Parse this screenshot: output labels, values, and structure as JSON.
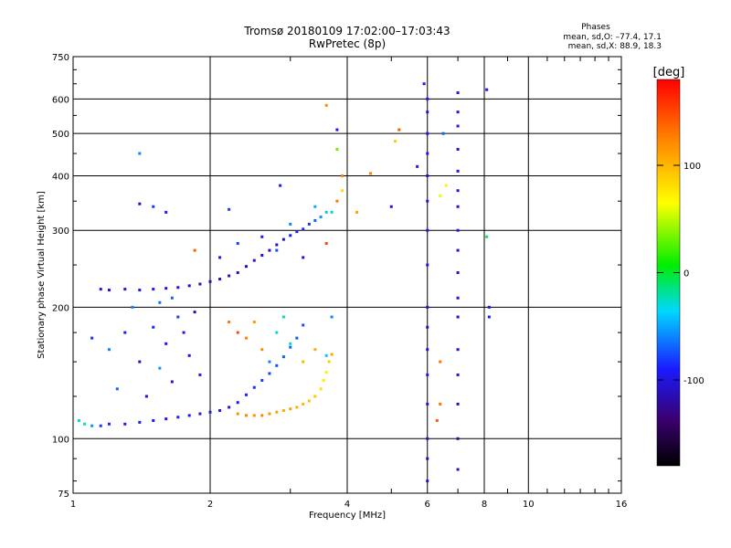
{
  "chart_data": {
    "type": "scatter",
    "title": "Tromsø 20180109 17:02:00–17:03:43",
    "subtitle": "RwPretec (8p)",
    "stats": {
      "heading": "Phases",
      "line1": "mean, sd,O: –77.4, 17.1",
      "line2": "mean, sd,X:  88.9, 18.3"
    },
    "xlabel": "Frequency [MHz]",
    "ylabel": "Stationary phase Virtual Height [km]",
    "x_scale": "log",
    "y_scale": "log",
    "xlim": [
      1,
      16
    ],
    "ylim": [
      75,
      750
    ],
    "grid": true,
    "x_ticks": [
      {
        "value": 1,
        "label": "1"
      },
      {
        "value": 2,
        "label": "2"
      },
      {
        "value": 4,
        "label": "4"
      },
      {
        "value": 6,
        "label": "6"
      },
      {
        "value": 8,
        "label": "8"
      },
      {
        "value": 10,
        "label": "10"
      },
      {
        "value": 16,
        "label": "16"
      }
    ],
    "x_minor_ticks": [
      3,
      5,
      7,
      9,
      11,
      12,
      13,
      14,
      15
    ],
    "y_ticks": [
      {
        "value": 75,
        "label": "75"
      },
      {
        "value": 100,
        "label": "100"
      },
      {
        "value": 200,
        "label": "200"
      },
      {
        "value": 300,
        "label": "300"
      },
      {
        "value": 400,
        "label": "400"
      },
      {
        "value": 500,
        "label": "500"
      },
      {
        "value": 600,
        "label": "600"
      },
      {
        "value": 750,
        "label": "750"
      }
    ],
    "colorbar": {
      "label": "[deg]",
      "min": -180,
      "max": 180,
      "ticks": [
        {
          "value": 100,
          "label": "100"
        },
        {
          "value": 0,
          "label": "0"
        },
        {
          "value": -100,
          "label": "-100"
        }
      ]
    },
    "points": [
      [
        1.03,
        110,
        -30
      ],
      [
        1.06,
        108,
        -25
      ],
      [
        1.1,
        107,
        -55
      ],
      [
        1.15,
        107,
        -80
      ],
      [
        1.2,
        108,
        -85
      ],
      [
        1.3,
        108,
        -90
      ],
      [
        1.4,
        109,
        -90
      ],
      [
        1.5,
        110,
        -90
      ],
      [
        1.6,
        111,
        -92
      ],
      [
        1.7,
        112,
        -95
      ],
      [
        1.8,
        113,
        -95
      ],
      [
        1.9,
        114,
        -95
      ],
      [
        2.0,
        115,
        -95
      ],
      [
        2.1,
        116,
        -95
      ],
      [
        2.2,
        118,
        -95
      ],
      [
        2.3,
        121,
        -90
      ],
      [
        2.4,
        126,
        -88
      ],
      [
        2.5,
        131,
        -85
      ],
      [
        2.6,
        136,
        -80
      ],
      [
        2.7,
        141,
        -78
      ],
      [
        2.8,
        147,
        -75
      ],
      [
        2.9,
        154,
        -70
      ],
      [
        3.0,
        162,
        -70
      ],
      [
        3.1,
        170,
        -72
      ],
      [
        3.2,
        182,
        -75
      ],
      [
        2.3,
        114,
        120
      ],
      [
        2.4,
        113,
        125
      ],
      [
        2.5,
        113,
        120
      ],
      [
        2.6,
        113,
        125
      ],
      [
        2.7,
        114,
        115
      ],
      [
        2.8,
        115,
        110
      ],
      [
        2.9,
        116,
        105
      ],
      [
        3.0,
        117,
        110
      ],
      [
        3.1,
        118,
        105
      ],
      [
        3.2,
        120,
        100
      ],
      [
        3.3,
        122,
        95
      ],
      [
        3.4,
        125,
        90
      ],
      [
        3.5,
        130,
        80
      ],
      [
        3.55,
        136,
        75
      ],
      [
        3.6,
        142,
        70
      ],
      [
        3.65,
        150,
        90
      ],
      [
        3.7,
        156,
        110
      ],
      [
        1.15,
        220,
        -105
      ],
      [
        1.2,
        219,
        -100
      ],
      [
        1.3,
        220,
        -100
      ],
      [
        1.4,
        219,
        -95
      ],
      [
        1.5,
        220,
        -95
      ],
      [
        1.6,
        221,
        -100
      ],
      [
        1.7,
        222,
        -100
      ],
      [
        1.8,
        224,
        -110
      ],
      [
        1.9,
        226,
        -110
      ],
      [
        2.0,
        229,
        -115
      ],
      [
        2.1,
        232,
        -110
      ],
      [
        2.2,
        236,
        -105
      ],
      [
        2.3,
        240,
        -110
      ],
      [
        2.4,
        248,
        -115
      ],
      [
        2.5,
        256,
        -100
      ],
      [
        2.6,
        263,
        -105
      ],
      [
        2.7,
        270,
        -110
      ],
      [
        2.8,
        278,
        -105
      ],
      [
        2.9,
        286,
        -100
      ],
      [
        3.0,
        292,
        -95
      ],
      [
        3.1,
        298,
        -90
      ],
      [
        3.2,
        302,
        -85
      ],
      [
        3.3,
        310,
        -80
      ],
      [
        3.4,
        316,
        -70
      ],
      [
        3.5,
        322,
        -55
      ],
      [
        3.6,
        330,
        -40
      ],
      [
        1.1,
        170,
        -85
      ],
      [
        1.2,
        160,
        -60
      ],
      [
        1.3,
        175,
        -90
      ],
      [
        1.4,
        150,
        -110
      ],
      [
        1.5,
        180,
        -85
      ],
      [
        1.6,
        165,
        -95
      ],
      [
        1.7,
        190,
        -80
      ],
      [
        1.8,
        155,
        -100
      ],
      [
        1.9,
        140,
        -90
      ],
      [
        1.25,
        130,
        -70
      ],
      [
        1.45,
        125,
        -100
      ],
      [
        1.55,
        145,
        -55
      ],
      [
        1.65,
        135,
        -105
      ],
      [
        1.75,
        175,
        -95
      ],
      [
        1.85,
        195,
        -115
      ],
      [
        2.2,
        185,
        130
      ],
      [
        2.3,
        175,
        150
      ],
      [
        2.4,
        170,
        125
      ],
      [
        2.5,
        185,
        115
      ],
      [
        2.6,
        160,
        120
      ],
      [
        2.7,
        150,
        -60
      ],
      [
        2.8,
        175,
        -30
      ],
      [
        2.9,
        190,
        -20
      ],
      [
        3.0,
        165,
        -25
      ],
      [
        3.2,
        150,
        100
      ],
      [
        3.4,
        160,
        105
      ],
      [
        3.6,
        155,
        -40
      ],
      [
        3.7,
        190,
        -60
      ],
      [
        1.35,
        200,
        -60
      ],
      [
        1.55,
        205,
        -65
      ],
      [
        1.65,
        210,
        -70
      ],
      [
        1.85,
        270,
        140
      ],
      [
        2.1,
        260,
        -90
      ],
      [
        2.3,
        280,
        -80
      ],
      [
        2.6,
        290,
        -95
      ],
      [
        2.8,
        270,
        -75
      ],
      [
        3.0,
        310,
        -60
      ],
      [
        3.4,
        340,
        -50
      ],
      [
        3.7,
        330,
        -30
      ],
      [
        3.8,
        350,
        130
      ],
      [
        3.6,
        280,
        150
      ],
      [
        3.2,
        260,
        -100
      ],
      [
        2.85,
        380,
        -90
      ],
      [
        1.4,
        450,
        -60
      ],
      [
        1.5,
        340,
        -80
      ],
      [
        1.6,
        330,
        -90
      ],
      [
        1.4,
        345,
        -110
      ],
      [
        2.2,
        335,
        -80
      ],
      [
        3.8,
        510,
        -95
      ],
      [
        3.6,
        580,
        120
      ],
      [
        3.9,
        400,
        125
      ],
      [
        4.5,
        405,
        125
      ],
      [
        5.2,
        510,
        140
      ],
      [
        5.1,
        480,
        90
      ],
      [
        5.7,
        420,
        -90
      ],
      [
        3.8,
        460,
        30
      ],
      [
        3.9,
        370,
        80
      ],
      [
        4.2,
        330,
        110
      ],
      [
        5.0,
        340,
        -100
      ],
      [
        6.0,
        80,
        -110
      ],
      [
        6.0,
        90,
        -115
      ],
      [
        6.0,
        100,
        -105
      ],
      [
        6.0,
        120,
        -100
      ],
      [
        6.0,
        140,
        -95
      ],
      [
        6.0,
        160,
        -100
      ],
      [
        6.0,
        180,
        -110
      ],
      [
        6.0,
        200,
        -105
      ],
      [
        6.0,
        250,
        -95
      ],
      [
        6.0,
        300,
        -100
      ],
      [
        6.0,
        350,
        -105
      ],
      [
        6.0,
        400,
        -100
      ],
      [
        6.0,
        450,
        -95
      ],
      [
        6.0,
        500,
        -100
      ],
      [
        6.0,
        560,
        -105
      ],
      [
        6.0,
        600,
        -100
      ],
      [
        5.9,
        650,
        -90
      ],
      [
        7.0,
        100,
        -120
      ],
      [
        7.0,
        120,
        -115
      ],
      [
        7.0,
        140,
        -100
      ],
      [
        7.0,
        160,
        -100
      ],
      [
        7.0,
        190,
        -105
      ],
      [
        7.0,
        210,
        -100
      ],
      [
        7.0,
        240,
        -105
      ],
      [
        7.0,
        270,
        -100
      ],
      [
        7.0,
        300,
        -95
      ],
      [
        7.0,
        340,
        -100
      ],
      [
        7.0,
        370,
        -100
      ],
      [
        7.0,
        410,
        -95
      ],
      [
        7.0,
        460,
        -100
      ],
      [
        7.0,
        520,
        -95
      ],
      [
        7.0,
        560,
        -100
      ],
      [
        7.0,
        620,
        -90
      ],
      [
        7.0,
        85,
        -105
      ],
      [
        6.4,
        150,
        130
      ],
      [
        6.5,
        500,
        -70
      ],
      [
        6.6,
        380,
        70
      ],
      [
        6.4,
        360,
        60
      ],
      [
        8.1,
        630,
        -100
      ],
      [
        8.2,
        190,
        -90
      ],
      [
        8.2,
        200,
        -100
      ],
      [
        8.1,
        290,
        -10
      ],
      [
        6.3,
        110,
        140
      ],
      [
        6.4,
        120,
        130
      ]
    ]
  }
}
